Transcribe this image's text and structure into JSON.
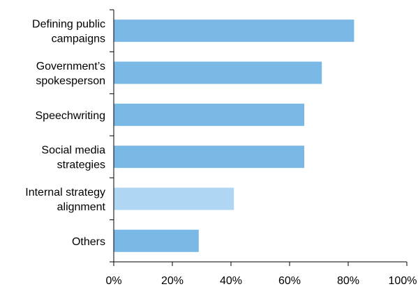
{
  "chart_data": {
    "type": "bar",
    "orientation": "horizontal",
    "title": "",
    "xlabel": "",
    "ylabel": "",
    "xlim": [
      0,
      100
    ],
    "grid": false,
    "legend": "none",
    "categories": [
      [
        "Defining public",
        "campaigns"
      ],
      [
        "Government’s",
        "spokesperson"
      ],
      [
        "Speechwriting"
      ],
      [
        "Social media",
        "strategies"
      ],
      [
        "Internal strategy",
        "alignment"
      ],
      [
        "Others"
      ]
    ],
    "values": [
      82,
      71,
      65,
      65,
      41,
      29
    ],
    "bar_colors": [
      "#7ab9e6",
      "#7ab9e6",
      "#7ab9e6",
      "#7ab9e6",
      "#afd6f3",
      "#7ab9e6"
    ],
    "x_ticks": [
      0,
      20,
      40,
      60,
      80,
      100
    ],
    "x_tick_labels": [
      "0%",
      "20%",
      "40%",
      "60%",
      "80%",
      "100%"
    ]
  }
}
